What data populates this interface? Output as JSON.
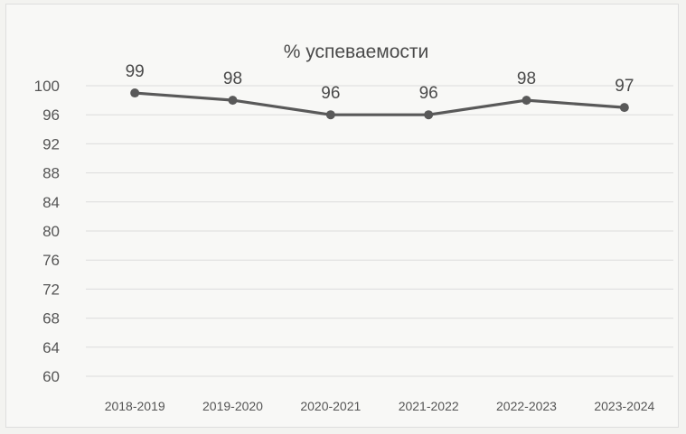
{
  "chart_data": {
    "type": "line",
    "title": "% успеваемости",
    "categories": [
      "2018-2019",
      "2019-2020",
      "2020-2021",
      "2021-2022",
      "2022-2023",
      "2023-2024"
    ],
    "series": [
      {
        "values": [
          99,
          98,
          96,
          96,
          98,
          97
        ],
        "data_labels": [
          "99",
          "98",
          "96",
          "96",
          "98",
          "97"
        ]
      }
    ],
    "yticks": [
      "60",
      "64",
      "68",
      "72",
      "76",
      "80",
      "84",
      "88",
      "92",
      "96",
      "100"
    ],
    "ylim": [
      60,
      100
    ],
    "grid": true,
    "legend": "none",
    "colors": {
      "series": "#595959",
      "grid": "#dcdcdc",
      "text": "#555555"
    }
  }
}
